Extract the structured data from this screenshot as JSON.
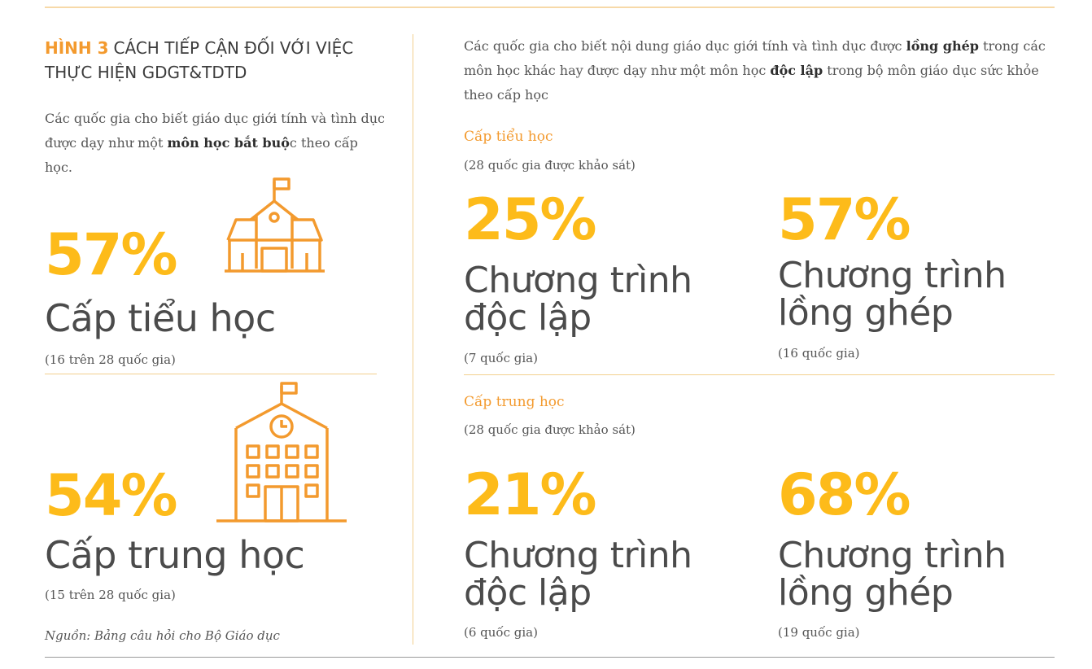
{
  "figure": {
    "number": "HÌNH 3",
    "title": "CÁCH TIẾP CẬN ĐỐI VỚI VIỆC THỰC HIỆN GDGT&TDTD"
  },
  "left": {
    "desc_before": "Các quốc gia cho biết giáo dục giới tính và tình dục được dạy như một",
    "desc_bold": "môn học bắt buộ",
    "desc_after": "c theo cấp học.",
    "primary": {
      "pct": "57%",
      "label": "Cấp tiểu học",
      "note": "(16 trên 28 quốc gia)",
      "icon": "school-house-icon"
    },
    "secondary": {
      "pct": "54%",
      "label": "Cấp trung học",
      "note": "(15 trên 28 quốc gia)",
      "icon": "school-building-clock-icon"
    },
    "source": "Nguồn: Bảng câu hỏi cho Bộ Giáo dục"
  },
  "right": {
    "desc_1": "Các quốc gia cho biết nội dung giáo dục giới tính và tình dục được",
    "desc_bold_1": "lồng ghép",
    "desc_2": "trong các môn học khác hay được dạy như một môn học",
    "desc_bold_2": "độc lập",
    "desc_3": "trong bộ môn giáo dục sức khỏe theo cấp học",
    "primary": {
      "heading": "Cấp tiểu học",
      "survey": "(28 quốc gia được khảo sát)",
      "standalone": {
        "pct": "25%",
        "label_1": "Chương trình",
        "label_2": "độc lập",
        "note": "(7 quốc gia)"
      },
      "integrated": {
        "pct": "57%",
        "label_1": "Chương trình",
        "label_2": "lồng ghép",
        "note": "(16 quốc gia)"
      }
    },
    "secondary": {
      "heading": "Cấp trung học",
      "survey": "(28 quốc gia được khảo sát)",
      "standalone": {
        "pct": "21%",
        "label_1": "Chương trình",
        "label_2": "độc lập",
        "note": "(6 quốc gia)"
      },
      "integrated": {
        "pct": "68%",
        "label_1": "Chương trình",
        "label_2": "lồng ghép",
        "note": "(19 quốc gia)"
      }
    }
  },
  "colors": {
    "accent_orange": "#f39a2e",
    "pct_yellow": "#fdbb1a",
    "rule": "#f2d08e"
  }
}
